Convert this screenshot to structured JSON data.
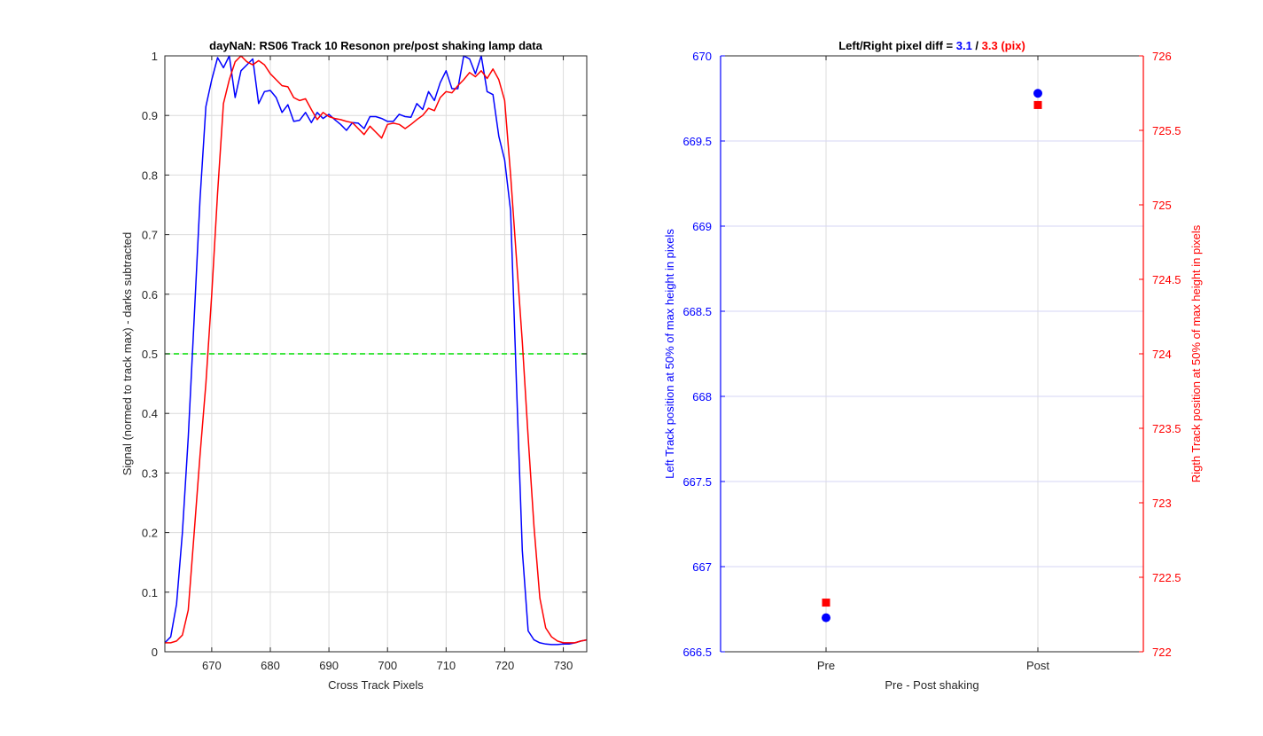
{
  "chart_data": [
    {
      "type": "line",
      "title": "dayNaN: RS06  Track 10 Resonon pre/post shaking lamp data",
      "xlabel": "Cross Track Pixels",
      "ylabel": "Signal (normed to track max) - darks subtracted",
      "xlim": [
        662,
        734
      ],
      "ylim": [
        0,
        1
      ],
      "xticks": [
        670,
        680,
        690,
        700,
        710,
        720,
        730
      ],
      "yticks": [
        0,
        0.1,
        0.2,
        0.3,
        0.4,
        0.5,
        0.6,
        0.7,
        0.8,
        0.9,
        1
      ],
      "ytick_labels": [
        "0",
        "0.1",
        "0.2",
        "0.3",
        "0.4",
        "0.5",
        "0.6",
        "0.7",
        "0.8",
        "0.9",
        "1"
      ],
      "grid": true,
      "series": [
        {
          "color": "#0000ff",
          "x": [
            662,
            663,
            664,
            665,
            666,
            667,
            668,
            669,
            670,
            671,
            672,
            673,
            674,
            675,
            676,
            677,
            678,
            679,
            680,
            681,
            682,
            683,
            684,
            685,
            686,
            687,
            688,
            689,
            690,
            691,
            692,
            693,
            694,
            695,
            696,
            697,
            698,
            699,
            700,
            701,
            702,
            703,
            704,
            705,
            706,
            707,
            708,
            709,
            710,
            711,
            712,
            713,
            714,
            715,
            716,
            717,
            718,
            719,
            720,
            721,
            722,
            723,
            724,
            725,
            726,
            727,
            728,
            729,
            730,
            731,
            732,
            733,
            734
          ],
          "y": [
            0.015,
            0.025,
            0.08,
            0.2,
            0.36,
            0.56,
            0.76,
            0.915,
            0.96,
            0.997,
            0.98,
            1.0,
            0.93,
            0.975,
            0.985,
            0.995,
            0.92,
            0.94,
            0.942,
            0.93,
            0.905,
            0.918,
            0.89,
            0.892,
            0.905,
            0.888,
            0.905,
            0.895,
            0.902,
            0.893,
            0.885,
            0.875,
            0.888,
            0.887,
            0.878,
            0.898,
            0.898,
            0.895,
            0.89,
            0.89,
            0.902,
            0.898,
            0.897,
            0.92,
            0.91,
            0.94,
            0.925,
            0.955,
            0.975,
            0.945,
            0.945,
            1.0,
            0.995,
            0.97,
            1.0,
            0.94,
            0.935,
            0.865,
            0.825,
            0.74,
            0.45,
            0.17,
            0.035,
            0.02,
            0.015,
            0.013,
            0.012,
            0.012,
            0.013,
            0.013,
            0.015,
            0.018,
            0.02
          ]
        },
        {
          "color": "#ff0000",
          "x": [
            662,
            663,
            664,
            665,
            666,
            667,
            668,
            669,
            670,
            671,
            672,
            673,
            674,
            675,
            676,
            677,
            678,
            679,
            680,
            681,
            682,
            683,
            684,
            685,
            686,
            687,
            688,
            689,
            690,
            691,
            692,
            693,
            694,
            695,
            696,
            697,
            698,
            699,
            700,
            701,
            702,
            703,
            704,
            705,
            706,
            707,
            708,
            709,
            710,
            711,
            712,
            713,
            714,
            715,
            716,
            717,
            718,
            719,
            720,
            721,
            722,
            723,
            724,
            725,
            726,
            727,
            728,
            729,
            730,
            731,
            732,
            733,
            734
          ],
          "y": [
            0.015,
            0.015,
            0.018,
            0.028,
            0.07,
            0.2,
            0.33,
            0.45,
            0.6,
            0.77,
            0.92,
            0.96,
            0.99,
            1.0,
            0.99,
            0.985,
            0.992,
            0.985,
            0.97,
            0.96,
            0.95,
            0.948,
            0.93,
            0.925,
            0.928,
            0.91,
            0.893,
            0.905,
            0.898,
            0.895,
            0.893,
            0.89,
            0.888,
            0.878,
            0.868,
            0.882,
            0.872,
            0.862,
            0.885,
            0.887,
            0.885,
            0.878,
            0.885,
            0.893,
            0.9,
            0.912,
            0.908,
            0.93,
            0.94,
            0.938,
            0.95,
            0.96,
            0.972,
            0.965,
            0.975,
            0.962,
            0.978,
            0.96,
            0.925,
            0.8,
            0.66,
            0.52,
            0.36,
            0.21,
            0.09,
            0.04,
            0.025,
            0.018,
            0.015,
            0.015,
            0.015,
            0.018,
            0.02
          ]
        }
      ],
      "reference_line": {
        "y": 0.5,
        "color": "#00dd00",
        "style": "dashed"
      }
    },
    {
      "type": "scatter",
      "title_prefix": "Left/Right pixel diff = ",
      "title_left_value": "3.1",
      "title_separator": " / ",
      "title_right_value": "3.3 (pix)",
      "xlabel": "Pre - Post shaking",
      "categories": [
        "Pre",
        "Post"
      ],
      "ylabel_left": "Left Track position at 50% of max height in pixels",
      "ylabel_right": "Rigth Track position at 50% of max height in pixels",
      "ylim_left": [
        666.5,
        670
      ],
      "ylim_right": [
        722,
        726
      ],
      "yticks_left": [
        666.5,
        667,
        667.5,
        668,
        668.5,
        669,
        669.5,
        670
      ],
      "ytick_labels_left": [
        "666.5",
        "667",
        "667.5",
        "668",
        "668.5",
        "669",
        "669.5",
        "670"
      ],
      "yticks_right": [
        722,
        722.5,
        723,
        723.5,
        724,
        724.5,
        725,
        725.5,
        726
      ],
      "ytick_labels_right": [
        "722",
        "722.5",
        "723",
        "723.5",
        "724",
        "724.5",
        "725",
        "725.5",
        "726"
      ],
      "grid": true,
      "series": [
        {
          "axis": "left",
          "marker": "circle",
          "color": "#0000ff",
          "values": [
            666.7,
            669.78
          ]
        },
        {
          "axis": "right",
          "marker": "square",
          "color": "#ff0000",
          "values": [
            722.33,
            725.67
          ]
        }
      ]
    }
  ]
}
